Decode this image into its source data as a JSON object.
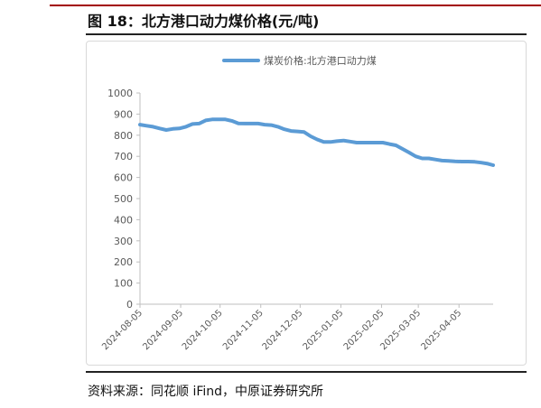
{
  "figure": {
    "title": "图 18：北方港口动力煤价格(元/吨)",
    "source": "资料来源：同花顺 iFind，中原证券研究所"
  },
  "chart_data": {
    "type": "line",
    "title": "",
    "xlabel": "",
    "ylabel": "",
    "ylim": [
      0,
      1000
    ],
    "yticks": [
      "0",
      "100",
      "200",
      "300",
      "400",
      "500",
      "600",
      "700",
      "800",
      "900",
      "1000"
    ],
    "xlim": [
      "2024-08-05",
      "2025-05-01"
    ],
    "xticks": [
      "2024-08-05",
      "2024-09-05",
      "2024-10-05",
      "2024-11-05",
      "2024-12-05",
      "2025-01-05",
      "2025-02-05",
      "2025-03-05",
      "2025-04-05"
    ],
    "grid": false,
    "legend": "top-center",
    "color": "#5b9bd5",
    "series": [
      {
        "name": "煤炭价格:北方港口动力煤",
        "points": [
          [
            "2024-08-05",
            850
          ],
          [
            "2024-08-10",
            845
          ],
          [
            "2024-08-15",
            840
          ],
          [
            "2024-08-20",
            832
          ],
          [
            "2024-08-25",
            825
          ],
          [
            "2024-08-30",
            830
          ],
          [
            "2024-09-04",
            832
          ],
          [
            "2024-09-09",
            840
          ],
          [
            "2024-09-14",
            853
          ],
          [
            "2024-09-19",
            855
          ],
          [
            "2024-09-24",
            870
          ],
          [
            "2024-09-29",
            875
          ],
          [
            "2024-10-04",
            875
          ],
          [
            "2024-10-09",
            875
          ],
          [
            "2024-10-14",
            868
          ],
          [
            "2024-10-19",
            856
          ],
          [
            "2024-10-24",
            855
          ],
          [
            "2024-10-29",
            855
          ],
          [
            "2024-11-03",
            855
          ],
          [
            "2024-11-08",
            850
          ],
          [
            "2024-11-13",
            848
          ],
          [
            "2024-11-18",
            840
          ],
          [
            "2024-11-23",
            828
          ],
          [
            "2024-11-28",
            820
          ],
          [
            "2024-12-03",
            818
          ],
          [
            "2024-12-08",
            815
          ],
          [
            "2024-12-13",
            795
          ],
          [
            "2024-12-18",
            780
          ],
          [
            "2024-12-23",
            768
          ],
          [
            "2024-12-28",
            768
          ],
          [
            "2025-01-02",
            772
          ],
          [
            "2025-01-07",
            775
          ],
          [
            "2025-01-12",
            770
          ],
          [
            "2025-01-17",
            765
          ],
          [
            "2025-01-22",
            765
          ],
          [
            "2025-01-27",
            765
          ],
          [
            "2025-02-01",
            765
          ],
          [
            "2025-02-06",
            765
          ],
          [
            "2025-02-11",
            758
          ],
          [
            "2025-02-16",
            752
          ],
          [
            "2025-02-21",
            735
          ],
          [
            "2025-02-26",
            718
          ],
          [
            "2025-03-03",
            700
          ],
          [
            "2025-03-08",
            690
          ],
          [
            "2025-03-13",
            690
          ],
          [
            "2025-03-18",
            685
          ],
          [
            "2025-03-23",
            680
          ],
          [
            "2025-03-28",
            678
          ],
          [
            "2025-04-02",
            676
          ],
          [
            "2025-04-07",
            675
          ],
          [
            "2025-04-12",
            675
          ],
          [
            "2025-04-17",
            674
          ],
          [
            "2025-04-22",
            670
          ],
          [
            "2025-04-27",
            665
          ],
          [
            "2025-05-01",
            658
          ]
        ]
      }
    ]
  }
}
